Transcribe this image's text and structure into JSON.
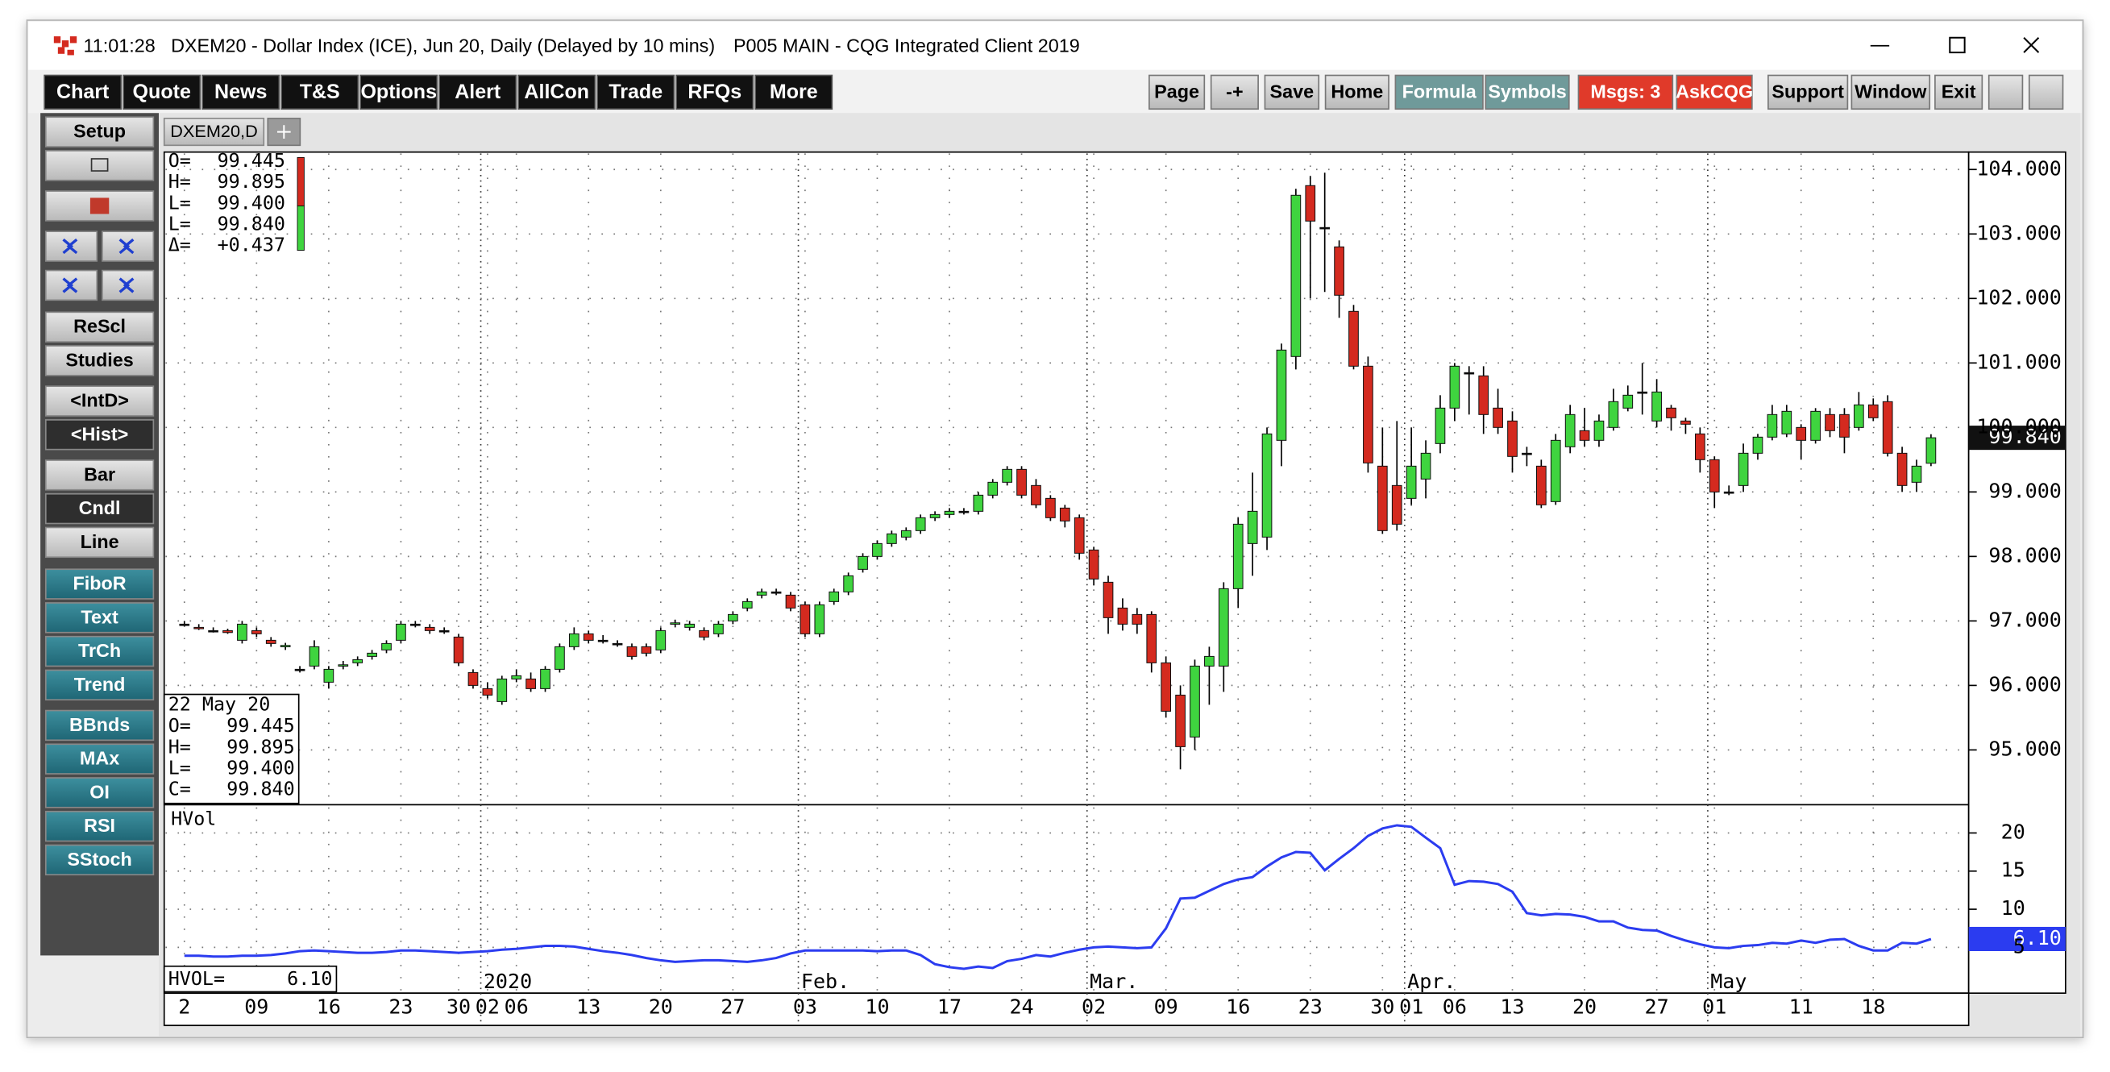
{
  "window": {
    "time": "11:01:28",
    "title": "DXEM20 - Dollar Index (ICE), Jun 20, Daily (Delayed by 10 mins)",
    "workspace": "P005 MAIN - CQG Integrated Client 2019"
  },
  "toolbar": {
    "left": [
      "Chart",
      "Quote",
      "News",
      "T&S",
      "Options",
      "Alert",
      "AllCon",
      "Trade",
      "RFQs",
      "More"
    ],
    "right": [
      "Page",
      "-+",
      "Save",
      "Home",
      "Formula",
      "Symbols",
      "Msgs: 3",
      "AskCQG",
      "Support",
      "Window",
      "Exit"
    ]
  },
  "sidebar": [
    "Setup",
    "ReScl",
    "Studies",
    "<IntD>",
    "<Hist>",
    "Bar",
    "Cndl",
    "Line",
    "FiboR",
    "Text",
    "TrCh",
    "Trend",
    "BBnds",
    "MAx",
    "OI",
    "RSI",
    "SStoch"
  ],
  "tab": "DXEM20,D",
  "readout_top": [
    {
      "label": "O=",
      "value": "99.445"
    },
    {
      "label": "H=",
      "value": "99.895"
    },
    {
      "label": "L=",
      "value": "99.400"
    },
    {
      "label": "L=",
      "value": "99.840"
    },
    {
      "label": "Δ=",
      "value": "+0.437"
    }
  ],
  "readout_bottom": {
    "date": "22 May 20",
    "rows": [
      {
        "label": "O=",
        "value": "99.445"
      },
      {
        "label": "H=",
        "value": "99.895"
      },
      {
        "label": "L=",
        "value": "99.400"
      },
      {
        "label": "C=",
        "value": "99.840"
      }
    ]
  },
  "month_labels": [
    "2020",
    "Feb.",
    "Mar.",
    "Apr.",
    "May"
  ],
  "chart_data": [
    {
      "type": "candlestick",
      "categories": [
        "2",
        null,
        null,
        null,
        null,
        "09",
        null,
        null,
        null,
        null,
        "16",
        null,
        null,
        null,
        null,
        "23",
        null,
        null,
        null,
        "30",
        null,
        "02",
        null,
        "06",
        null,
        null,
        null,
        null,
        "13",
        null,
        null,
        null,
        null,
        "20",
        null,
        null,
        null,
        null,
        "27",
        null,
        null,
        null,
        null,
        "03",
        null,
        null,
        null,
        null,
        "10",
        null,
        null,
        null,
        null,
        "17",
        null,
        null,
        null,
        null,
        "24",
        null,
        null,
        null,
        null,
        "02",
        null,
        null,
        null,
        null,
        "09",
        null,
        null,
        null,
        null,
        "16",
        null,
        null,
        null,
        null,
        "23",
        null,
        null,
        null,
        null,
        "30",
        null,
        "01",
        null,
        null,
        "06",
        null,
        null,
        null,
        "13",
        null,
        null,
        null,
        null,
        "20",
        null,
        null,
        null,
        null,
        "27",
        null,
        null,
        null,
        "01",
        null,
        null,
        null,
        null,
        null,
        "11",
        null,
        null,
        null,
        null,
        "18",
        null,
        null,
        null,
        null
      ],
      "open": [
        96.95,
        96.9,
        96.85,
        96.85,
        96.7,
        96.85,
        96.7,
        96.6,
        96.25,
        96.3,
        96.05,
        96.3,
        96.35,
        96.45,
        96.55,
        96.7,
        96.95,
        96.9,
        96.85,
        96.75,
        96.2,
        95.95,
        95.75,
        96.1,
        96.1,
        95.95,
        96.25,
        96.6,
        96.8,
        96.7,
        96.65,
        96.6,
        96.6,
        96.55,
        96.95,
        96.9,
        96.85,
        96.8,
        97.0,
        97.2,
        97.4,
        97.45,
        97.4,
        97.25,
        96.8,
        97.3,
        97.45,
        97.8,
        98.0,
        98.2,
        98.3,
        98.4,
        98.6,
        98.65,
        98.7,
        98.7,
        98.95,
        99.15,
        99.35,
        99.1,
        98.9,
        98.75,
        98.6,
        98.1,
        97.6,
        97.2,
        97.1,
        97.1,
        96.35,
        95.85,
        95.2,
        96.3,
        96.3,
        97.5,
        98.2,
        98.3,
        99.8,
        101.1,
        103.75,
        103.1,
        102.8,
        101.8,
        100.95,
        99.4,
        99.1,
        98.9,
        99.2,
        99.75,
        100.3,
        100.85,
        100.8,
        100.3,
        100.1,
        99.6,
        99.4,
        98.85,
        99.7,
        99.95,
        99.8,
        100.0,
        100.3,
        100.55,
        100.1,
        100.3,
        100.1,
        99.9,
        99.5,
        99.0,
        99.1,
        99.6,
        99.85,
        99.9,
        100.0,
        99.8,
        100.2,
        100.2,
        100.0,
        100.35,
        100.4,
        99.6,
        99.15,
        99.445
      ],
      "high": [
        97.0,
        96.95,
        96.9,
        96.88,
        97.0,
        96.9,
        96.75,
        96.66,
        96.3,
        96.7,
        96.3,
        96.38,
        96.45,
        96.55,
        96.7,
        97.0,
        97.0,
        96.95,
        96.9,
        96.8,
        96.25,
        96.05,
        96.15,
        96.25,
        96.2,
        96.3,
        96.65,
        96.9,
        96.85,
        96.78,
        96.7,
        96.65,
        96.65,
        96.9,
        97.02,
        97.0,
        96.9,
        97.0,
        97.15,
        97.35,
        97.5,
        97.5,
        97.45,
        97.3,
        97.3,
        97.5,
        97.75,
        98.05,
        98.25,
        98.4,
        98.45,
        98.65,
        98.7,
        98.75,
        98.75,
        99.0,
        99.2,
        99.4,
        99.4,
        99.2,
        98.95,
        98.8,
        98.65,
        98.15,
        97.7,
        97.35,
        97.2,
        97.15,
        96.45,
        96.0,
        96.4,
        96.6,
        97.6,
        98.6,
        99.3,
        100.0,
        101.3,
        103.7,
        103.9,
        103.95,
        102.9,
        101.9,
        101.1,
        100.0,
        100.1,
        100.0,
        99.8,
        100.5,
        101.0,
        100.95,
        100.95,
        100.6,
        100.25,
        99.7,
        99.5,
        99.9,
        100.35,
        100.3,
        100.2,
        100.6,
        100.65,
        101.0,
        100.75,
        100.35,
        100.15,
        100.0,
        99.55,
        99.1,
        99.75,
        99.9,
        100.35,
        100.35,
        100.05,
        100.3,
        100.3,
        100.3,
        100.55,
        100.45,
        100.5,
        99.7,
        99.5,
        99.895
      ],
      "low": [
        96.92,
        96.86,
        96.82,
        96.8,
        96.65,
        96.75,
        96.6,
        96.55,
        96.2,
        96.25,
        95.95,
        96.25,
        96.3,
        96.4,
        96.5,
        96.65,
        96.9,
        96.8,
        96.8,
        96.3,
        95.95,
        95.8,
        95.7,
        96.05,
        95.9,
        95.9,
        96.2,
        96.55,
        96.65,
        96.65,
        96.6,
        96.4,
        96.45,
        96.5,
        96.9,
        96.85,
        96.7,
        96.75,
        96.95,
        97.15,
        97.35,
        97.4,
        97.15,
        96.75,
        96.75,
        97.25,
        97.4,
        97.75,
        97.95,
        98.15,
        98.25,
        98.35,
        98.55,
        98.6,
        98.65,
        98.65,
        98.9,
        99.1,
        98.9,
        98.75,
        98.55,
        98.45,
        97.95,
        97.55,
        96.8,
        96.85,
        96.8,
        96.2,
        95.5,
        94.7,
        95.0,
        95.7,
        95.9,
        97.2,
        97.7,
        98.1,
        99.4,
        100.9,
        102.0,
        102.1,
        101.7,
        100.9,
        99.3,
        98.35,
        98.4,
        98.8,
        98.9,
        99.6,
        100.1,
        100.2,
        99.9,
        99.9,
        99.3,
        99.4,
        98.75,
        98.8,
        99.6,
        99.7,
        99.7,
        99.95,
        100.25,
        100.2,
        100.0,
        99.95,
        99.9,
        99.3,
        98.75,
        98.95,
        99.0,
        99.5,
        99.8,
        99.85,
        99.5,
        99.75,
        99.85,
        99.6,
        99.95,
        100.1,
        99.55,
        99.0,
        99.0,
        99.4
      ],
      "close": [
        96.95,
        96.88,
        96.85,
        96.82,
        96.95,
        96.8,
        96.65,
        96.62,
        96.25,
        96.6,
        96.25,
        96.32,
        96.4,
        96.5,
        96.65,
        96.95,
        96.95,
        96.85,
        96.85,
        96.35,
        96.0,
        95.85,
        96.1,
        96.15,
        95.95,
        96.25,
        96.6,
        96.8,
        96.7,
        96.7,
        96.65,
        96.45,
        96.5,
        96.85,
        96.97,
        96.95,
        96.75,
        96.95,
        97.1,
        97.3,
        97.45,
        97.45,
        97.2,
        96.8,
        97.25,
        97.45,
        97.7,
        98.0,
        98.2,
        98.35,
        98.4,
        98.6,
        98.65,
        98.7,
        98.7,
        98.95,
        99.15,
        99.35,
        98.95,
        98.8,
        98.6,
        98.55,
        98.05,
        97.65,
        97.05,
        96.95,
        96.95,
        96.35,
        95.6,
        95.05,
        96.3,
        96.45,
        97.5,
        98.5,
        98.7,
        99.9,
        101.2,
        103.6,
        103.2,
        103.1,
        102.05,
        100.95,
        99.45,
        98.4,
        98.5,
        99.4,
        99.6,
        100.3,
        100.95,
        100.85,
        100.2,
        100.0,
        99.55,
        99.6,
        98.8,
        99.8,
        100.2,
        99.8,
        100.1,
        100.4,
        100.5,
        100.55,
        100.55,
        100.15,
        100.05,
        99.5,
        99.0,
        99.0,
        99.6,
        99.85,
        100.2,
        100.25,
        99.8,
        100.25,
        99.95,
        99.85,
        100.35,
        100.15,
        99.6,
        99.1,
        99.4,
        99.84
      ],
      "last_label": "99.840",
      "up_color": "#3fd43f",
      "down_color": "#d42a1f",
      "ylim": [
        94.15,
        104.27
      ],
      "yticks": [
        {
          "value": 95,
          "label": "95.000"
        },
        {
          "value": 96,
          "label": "96.000"
        },
        {
          "value": 97,
          "label": "97.000"
        },
        {
          "value": 98,
          "label": "98.000"
        },
        {
          "value": 99,
          "label": "99.000"
        },
        {
          "value": 100,
          "label": "100.000"
        },
        {
          "value": 101,
          "label": "101.000"
        },
        {
          "value": 102,
          "label": "102.000"
        },
        {
          "value": 103,
          "label": "103.000"
        },
        {
          "value": 104,
          "label": "104.000"
        }
      ],
      "grid": true
    },
    {
      "type": "line",
      "title": "HVol",
      "series": [
        {
          "name": "HVOL=",
          "color": "#2b3cf0",
          "values": [
            3.9,
            3.9,
            3.8,
            3.8,
            3.9,
            3.9,
            4.0,
            4.2,
            4.5,
            4.6,
            4.5,
            4.4,
            4.3,
            4.3,
            4.4,
            4.6,
            4.6,
            4.5,
            4.4,
            4.3,
            4.4,
            4.5,
            4.7,
            4.8,
            5.0,
            5.2,
            5.2,
            5.1,
            4.8,
            4.5,
            4.3,
            4.0,
            3.6,
            3.3,
            3.1,
            3.2,
            3.3,
            3.3,
            3.2,
            3.1,
            3.3,
            3.6,
            4.2,
            4.6,
            4.6,
            4.6,
            4.6,
            4.6,
            4.5,
            4.6,
            4.6,
            4.0,
            2.8,
            2.4,
            2.2,
            2.5,
            2.3,
            3.2,
            3.5,
            4.0,
            3.8,
            4.3,
            4.7,
            5.0,
            5.1,
            5.0,
            4.9,
            5.0,
            7.5,
            11.4,
            11.5,
            12.4,
            13.3,
            13.9,
            14.2,
            15.6,
            16.8,
            17.5,
            17.4,
            15.1,
            16.6,
            18.0,
            19.6,
            20.6,
            21.0,
            20.8,
            19.4,
            18.0,
            13.2,
            13.7,
            13.6,
            13.3,
            12.3,
            9.5,
            9.2,
            9.4,
            9.3,
            9.0,
            8.4,
            8.4,
            7.6,
            7.3,
            7.2,
            6.5,
            5.9,
            5.4,
            5.0,
            4.9,
            5.2,
            5.3,
            5.6,
            5.5,
            5.9,
            5.6,
            6.0,
            6.1,
            5.2,
            4.6,
            4.6,
            5.6,
            5.5,
            6.1
          ],
          "last_label": "6.10"
        }
      ],
      "ylim": [
        -1,
        23.7
      ],
      "yticks": [
        5,
        10,
        15,
        20
      ],
      "grid": true
    }
  ]
}
